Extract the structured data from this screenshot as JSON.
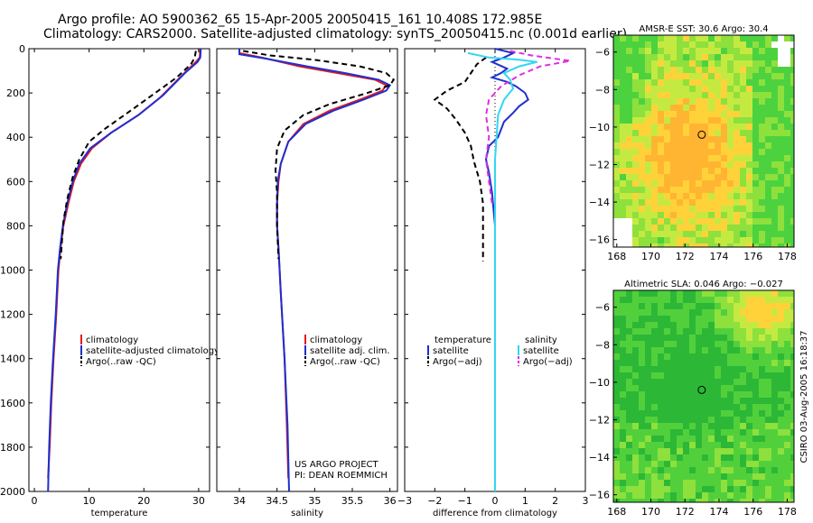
{
  "header": {
    "line1": "Argo profile: AO 5900362_65 15-Apr-2005 20050415_161 10.408S 172.985E",
    "line2": "Climatology: CARS2000. Satellite-adjusted climatology: synTS_20050415.nc (0.001d earlier)"
  },
  "project": {
    "line1": "US ARGO PROJECT",
    "line2": "PI: DEAN ROEMMICH"
  },
  "stamp": "CSIRO 03-Aug-2005 16:18:37",
  "colors": {
    "red": "#e41a1c",
    "blue": "#1f2fcf",
    "black": "#000000",
    "cyan": "#33d6f0",
    "magenta": "#e02ee0"
  },
  "chart_data": [
    {
      "type": "line",
      "id": "temperature",
      "xlabel": "temperature",
      "xlim": [
        -1,
        32
      ],
      "ylim": [
        2000,
        0
      ],
      "xticks": [
        0,
        10,
        20,
        30
      ],
      "yticks": [
        0,
        200,
        400,
        600,
        800,
        1000,
        1200,
        1400,
        1600,
        1800,
        2000
      ],
      "legend": [
        "climatology",
        "satellite-adjusted climatology",
        "Argo(..raw -QC)"
      ],
      "series": [
        {
          "name": "climatology",
          "color": "red",
          "dash": false,
          "points": [
            [
              30.3,
              0
            ],
            [
              30.2,
              40
            ],
            [
              29.5,
              60
            ],
            [
              27,
              120
            ],
            [
              23,
              220
            ],
            [
              19,
              300
            ],
            [
              14,
              380
            ],
            [
              10.5,
              450
            ],
            [
              8.5,
              520
            ],
            [
              7.2,
              600
            ],
            [
              6.2,
              700
            ],
            [
              5.3,
              800
            ],
            [
              4.8,
              900
            ],
            [
              4.4,
              1000
            ],
            [
              4.0,
              1200
            ],
            [
              3.5,
              1400
            ],
            [
              3.1,
              1600
            ],
            [
              2.8,
              1800
            ],
            [
              2.5,
              1940
            ]
          ]
        },
        {
          "name": "satellite-adjusted climatology",
          "color": "blue",
          "dash": false,
          "points": [
            [
              30.4,
              0
            ],
            [
              30.3,
              40
            ],
            [
              29.8,
              60
            ],
            [
              27.5,
              110
            ],
            [
              23.5,
              210
            ],
            [
              19,
              300
            ],
            [
              14,
              380
            ],
            [
              10.2,
              450
            ],
            [
              8.2,
              520
            ],
            [
              7.0,
              600
            ],
            [
              6.0,
              700
            ],
            [
              5.2,
              800
            ],
            [
              4.7,
              900
            ],
            [
              4.3,
              1000
            ],
            [
              3.9,
              1200
            ],
            [
              3.4,
              1400
            ],
            [
              3.0,
              1600
            ],
            [
              2.7,
              1800
            ],
            [
              2.5,
              2000
            ]
          ]
        },
        {
          "name": "Argo(..raw -QC)",
          "color": "black",
          "dash": true,
          "points": [
            [
              29.5,
              10
            ],
            [
              29.3,
              40
            ],
            [
              28.6,
              70
            ],
            [
              26,
              130
            ],
            [
              21.5,
              210
            ],
            [
              17,
              290
            ],
            [
              13,
              360
            ],
            [
              10,
              420
            ],
            [
              8.2,
              500
            ],
            [
              7.0,
              580
            ],
            [
              6.0,
              680
            ],
            [
              5.3,
              780
            ],
            [
              5.0,
              880
            ],
            [
              4.8,
              950
            ]
          ]
        }
      ]
    },
    {
      "type": "line",
      "id": "salinity",
      "xlabel": "salinity",
      "xlim": [
        33.7,
        36.1
      ],
      "ylim": [
        2000,
        0
      ],
      "xticks": [
        34,
        34.5,
        35,
        35.5,
        36
      ],
      "xticklabels": [
        "34",
        "34.5",
        "35",
        "35.5",
        "36"
      ],
      "legend": [
        "climatology",
        "satellite adj. clim.",
        "Argo(..raw -QC)"
      ],
      "series": [
        {
          "name": "climatology",
          "color": "red",
          "dash": false,
          "points": [
            [
              34.0,
              0
            ],
            [
              34.0,
              20
            ],
            [
              34.3,
              40
            ],
            [
              34.8,
              80
            ],
            [
              35.3,
              110
            ],
            [
              35.8,
              140
            ],
            [
              35.95,
              165
            ],
            [
              35.9,
              190
            ],
            [
              35.6,
              230
            ],
            [
              35.2,
              280
            ],
            [
              34.85,
              340
            ],
            [
              34.65,
              420
            ],
            [
              34.55,
              520
            ],
            [
              34.52,
              600
            ],
            [
              34.5,
              700
            ],
            [
              34.5,
              800
            ],
            [
              34.52,
              900
            ],
            [
              34.55,
              1100
            ],
            [
              34.6,
              1400
            ],
            [
              34.63,
              1700
            ],
            [
              34.65,
              1940
            ]
          ]
        },
        {
          "name": "satellite adj. clim.",
          "color": "blue",
          "dash": false,
          "points": [
            [
              34.0,
              0
            ],
            [
              34.0,
              25
            ],
            [
              34.35,
              45
            ],
            [
              34.9,
              80
            ],
            [
              35.4,
              110
            ],
            [
              35.85,
              140
            ],
            [
              36.0,
              165
            ],
            [
              35.95,
              190
            ],
            [
              35.65,
              230
            ],
            [
              35.25,
              280
            ],
            [
              34.88,
              340
            ],
            [
              34.65,
              420
            ],
            [
              34.55,
              520
            ],
            [
              34.51,
              600
            ],
            [
              34.5,
              700
            ],
            [
              34.5,
              800
            ],
            [
              34.52,
              900
            ],
            [
              34.55,
              1100
            ],
            [
              34.6,
              1400
            ],
            [
              34.64,
              1700
            ],
            [
              34.66,
              2000
            ]
          ]
        },
        {
          "name": "Argo(..raw -QC)",
          "color": "black",
          "dash": true,
          "points": [
            [
              34.05,
              10
            ],
            [
              34.4,
              30
            ],
            [
              35.0,
              50
            ],
            [
              35.6,
              80
            ],
            [
              35.95,
              110
            ],
            [
              36.05,
              140
            ],
            [
              36.0,
              165
            ],
            [
              35.7,
              200
            ],
            [
              35.2,
              250
            ],
            [
              34.85,
              300
            ],
            [
              34.6,
              370
            ],
            [
              34.5,
              450
            ],
            [
              34.48,
              550
            ],
            [
              34.5,
              650
            ],
            [
              34.5,
              800
            ],
            [
              34.52,
              950
            ]
          ]
        }
      ]
    },
    {
      "type": "line",
      "id": "difference",
      "xlabel": "difference from climatology",
      "xlim": [
        -3,
        3
      ],
      "ylim": [
        2000,
        0
      ],
      "xticks": [
        -3,
        -2,
        -1,
        0,
        1,
        2,
        3
      ],
      "xticklabels": [
        "−3",
        "−2",
        "−1",
        "0",
        "1",
        "2",
        "3"
      ],
      "legend_left": [
        "temperature",
        "satellite",
        "Argo(−adj)"
      ],
      "legend_right": [
        "salinity",
        "satellite",
        "Argo(−adj)"
      ],
      "series": [
        {
          "name": "temperature satellite",
          "color": "blue",
          "dash": false,
          "points": [
            [
              0,
              0
            ],
            [
              0.6,
              20
            ],
            [
              0.3,
              40
            ],
            [
              -0.1,
              60
            ],
            [
              0.4,
              90
            ],
            [
              0.2,
              110
            ],
            [
              -0.1,
              130
            ],
            [
              0.4,
              150
            ],
            [
              0.7,
              170
            ],
            [
              1.0,
              200
            ],
            [
              1.1,
              230
            ],
            [
              0.8,
              260
            ],
            [
              0.6,
              290
            ],
            [
              0.3,
              330
            ],
            [
              0.1,
              400
            ],
            [
              -0.2,
              440
            ],
            [
              -0.3,
              500
            ],
            [
              -0.2,
              560
            ],
            [
              -0.1,
              650
            ],
            [
              0,
              800
            ],
            [
              0,
              1000
            ],
            [
              0,
              1500
            ],
            [
              0,
              2000
            ]
          ]
        },
        {
          "name": "temperature Argo(-adj)",
          "color": "black",
          "dash": true,
          "points": [
            [
              -0.3,
              40
            ],
            [
              -0.6,
              70
            ],
            [
              -0.8,
              110
            ],
            [
              -1.0,
              150
            ],
            [
              -1.6,
              190
            ],
            [
              -2.0,
              230
            ],
            [
              -1.6,
              270
            ],
            [
              -1.3,
              320
            ],
            [
              -1.0,
              380
            ],
            [
              -0.8,
              440
            ],
            [
              -0.7,
              510
            ],
            [
              -0.5,
              600
            ],
            [
              -0.4,
              700
            ],
            [
              -0.4,
              800
            ],
            [
              -0.4,
              900
            ],
            [
              -0.4,
              960
            ]
          ]
        },
        {
          "name": "salinity satellite",
          "color": "cyan",
          "dash": false,
          "points": [
            [
              -0.9,
              20
            ],
            [
              -0.2,
              40
            ],
            [
              0.8,
              50
            ],
            [
              1.4,
              60
            ],
            [
              0.8,
              80
            ],
            [
              0.3,
              110
            ],
            [
              0.5,
              140
            ],
            [
              0.6,
              180
            ],
            [
              0.3,
              230
            ],
            [
              0.1,
              300
            ],
            [
              0.05,
              400
            ],
            [
              0,
              500
            ],
            [
              0,
              700
            ],
            [
              0,
              1000
            ],
            [
              0,
              1500
            ],
            [
              0,
              2000
            ]
          ]
        },
        {
          "name": "salinity Argo(-adj)",
          "color": "magenta",
          "dash": true,
          "points": [
            [
              0.5,
              10
            ],
            [
              1.2,
              30
            ],
            [
              2.5,
              55
            ],
            [
              1.5,
              80
            ],
            [
              0.8,
              120
            ],
            [
              0.2,
              170
            ],
            [
              -0.2,
              230
            ],
            [
              -0.3,
              300
            ],
            [
              -0.2,
              400
            ],
            [
              -0.3,
              500
            ],
            [
              -0.2,
              600
            ],
            [
              -0.1,
              700
            ]
          ]
        }
      ]
    },
    {
      "type": "heatmap",
      "id": "sst_map",
      "title": "AMSR-E SST: 30.6 Argo: 30.4",
      "xlim": [
        167.8,
        178.4
      ],
      "ylim": [
        -16.4,
        -5.1
      ],
      "xticks": [
        168,
        170,
        172,
        174,
        176,
        178
      ],
      "yticks": [
        -6,
        -8,
        -10,
        -12,
        -14,
        -16
      ],
      "argo_position": [
        172.985,
        -10.408
      ]
    },
    {
      "type": "heatmap",
      "id": "sla_map",
      "title": "Altimetric SLA: 0.046 Argo: −0.027",
      "xlim": [
        167.8,
        178.4
      ],
      "ylim": [
        -16.4,
        -5.1
      ],
      "xticks": [
        168,
        170,
        172,
        174,
        176,
        178
      ],
      "yticks": [
        -6,
        -8,
        -10,
        -12,
        -14,
        -16
      ],
      "argo_position": [
        172.985,
        -10.408
      ]
    }
  ]
}
